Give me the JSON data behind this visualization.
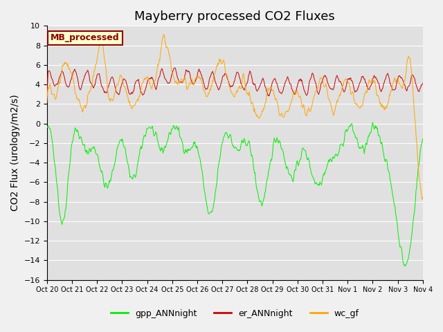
{
  "title": "Mayberry processed CO2 Fluxes",
  "ylabel": "CO2 Flux (urology/m2/s)",
  "ylim": [
    -16,
    10
  ],
  "yticks": [
    -16,
    -14,
    -12,
    -10,
    -8,
    -6,
    -4,
    -2,
    0,
    2,
    4,
    6,
    8,
    10
  ],
  "xtick_positions": [
    0,
    1,
    2,
    3,
    4,
    5,
    6,
    7,
    8,
    9,
    10,
    11,
    12,
    13,
    14,
    15
  ],
  "xtick_labels": [
    "Oct 20",
    "Oct 21",
    "Oct 22",
    "Oct 23",
    "Oct 24",
    "Oct 25",
    "Oct 26",
    "Oct 27",
    "Oct 28",
    "Oct 29",
    "Oct 30",
    "Oct 31",
    "Nov 1",
    "Nov 2",
    "Nov 3",
    "Nov 4"
  ],
  "legend_label": "MB_processed",
  "series_labels": [
    "gpp_ANNnight",
    "er_ANNnight",
    "wc_gf"
  ],
  "series_colors": [
    "#00ee00",
    "#cc0000",
    "#ffa500"
  ],
  "bg_color": "#f0f0f0",
  "plot_bg": "#e0e0e0",
  "grid_color": "#ffffff",
  "title_fontsize": 13,
  "axis_fontsize": 10,
  "tick_fontsize": 8
}
